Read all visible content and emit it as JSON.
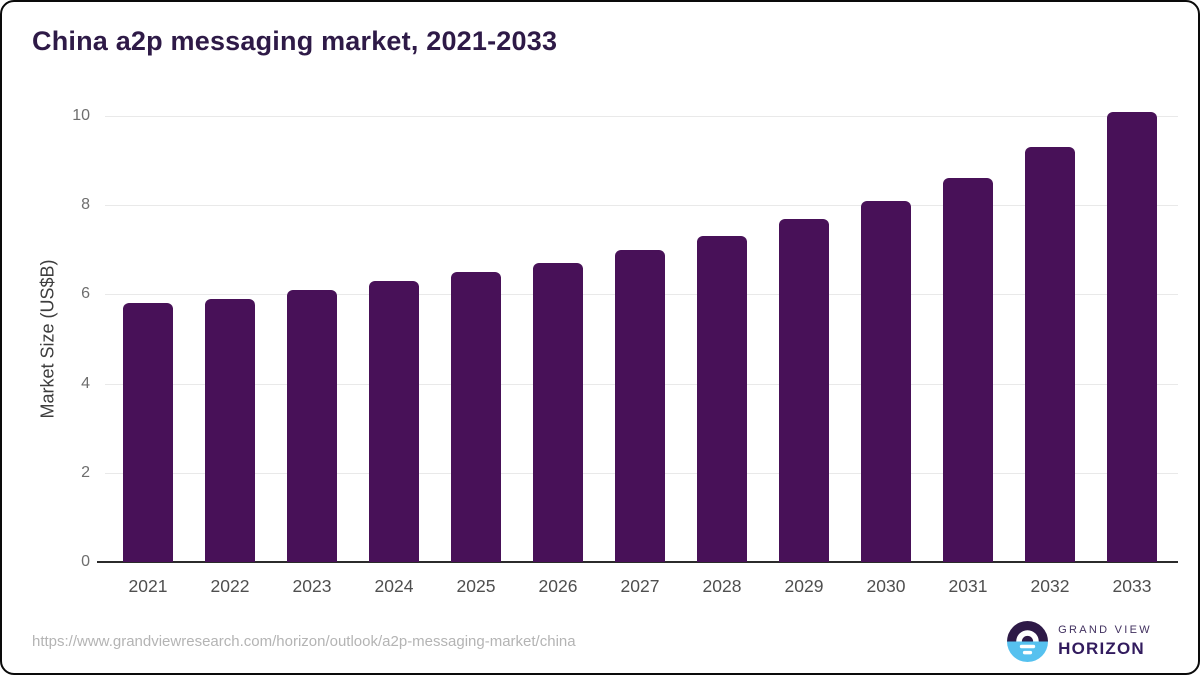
{
  "header": {
    "title": "China a2p messaging market, 2021-2033"
  },
  "chart_data": {
    "type": "bar",
    "title": "China a2p messaging market, 2021-2033",
    "categories": [
      "2021",
      "2022",
      "2023",
      "2024",
      "2025",
      "2026",
      "2027",
      "2028",
      "2029",
      "2030",
      "2031",
      "2032",
      "2033"
    ],
    "values": [
      5.8,
      5.9,
      6.1,
      6.3,
      6.5,
      6.7,
      7.0,
      7.3,
      7.7,
      8.1,
      8.6,
      9.3,
      10.1
    ],
    "xlabel": "",
    "ylabel": "Market Size (US$B)",
    "ylim": [
      0,
      10
    ],
    "yticks": [
      0,
      2,
      4,
      6,
      8,
      10
    ],
    "grid": true,
    "legend": "none"
  },
  "footer": {
    "source_url": "https://www.grandviewresearch.com/horizon/outlook/a2p-messaging-market/china",
    "logo": {
      "line1": "GRAND VIEW",
      "line2": "HORIZON"
    }
  },
  "colors": {
    "bar": "#481158",
    "title": "#2e1a47",
    "gridline": "#e9e9e9",
    "axis_line": "#2b2b2b",
    "y_tick_label": "#6e6e6e",
    "x_tick_label": "#4f4f4f",
    "source_url": "#b4b4b4",
    "logo_purple": "#2e1a47",
    "logo_blue": "#56c1ef"
  }
}
